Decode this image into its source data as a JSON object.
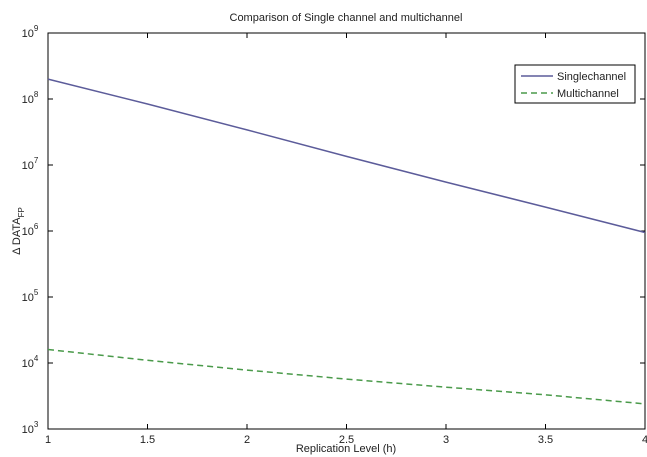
{
  "chart_data": {
    "type": "line",
    "title": "Comparison of Single channel and multichannel",
    "xlabel": "Replication Level (h)",
    "ylabel": "Δ DATA",
    "ylabel_sub": "FP",
    "xlim": [
      1,
      4
    ],
    "ylim": [
      1000,
      1000000000
    ],
    "yscale": "log",
    "grid": false,
    "legend_position": "top-right",
    "x_ticks": [
      "1",
      "1.5",
      "2",
      "2.5",
      "3",
      "3.5",
      "4"
    ],
    "y_ticks": [
      {
        "value": 1000,
        "base": "10",
        "exp": "3"
      },
      {
        "value": 10000,
        "base": "10",
        "exp": "4"
      },
      {
        "value": 100000,
        "base": "10",
        "exp": "5"
      },
      {
        "value": 1000000,
        "base": "10",
        "exp": "6"
      },
      {
        "value": 10000000,
        "base": "10",
        "exp": "7"
      },
      {
        "value": 100000000,
        "base": "10",
        "exp": "8"
      },
      {
        "value": 1000000000,
        "base": "10",
        "exp": "9"
      }
    ],
    "x": [
      1,
      1.5,
      2,
      2.5,
      3,
      3.5,
      4
    ],
    "series": [
      {
        "name": "Singlechannel",
        "color": "#5c5c9a",
        "dash": "solid",
        "values": [
          200000000,
          84000000,
          34000000,
          13500000,
          5500000,
          2300000,
          950000
        ]
      },
      {
        "name": "Multichannel",
        "color": "#4a9a4a",
        "dash": "dashed",
        "values": [
          16000,
          11000,
          7800,
          5700,
          4300,
          3300,
          2400
        ]
      }
    ]
  }
}
